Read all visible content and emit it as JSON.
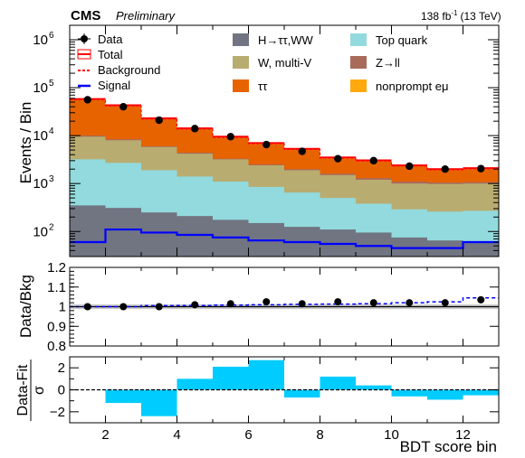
{
  "header": {
    "experiment": "CMS",
    "status": "Preliminary",
    "lumi": "138 fb",
    "lumi_sup": "-1",
    "energy": "(13 TeV)"
  },
  "legend": {
    "data": "Data",
    "total": "Total",
    "background": "Background",
    "signal": "Signal",
    "htautau": "H→ττ,WW",
    "wmultiv": "W, multi-V",
    "tautau": "ττ",
    "top": "Top quark",
    "zll": "Z→ll",
    "nonprompt": "nonprompt eμ"
  },
  "chart_data": [
    {
      "panel": "main",
      "type": "stacked-histogram",
      "ylabel": "Events / Bin",
      "yscale": "log",
      "ylim": [
        30,
        2000000
      ],
      "xlim": [
        1,
        13
      ],
      "x_bin_edges": [
        1,
        2,
        3,
        4,
        5,
        6,
        7,
        8,
        9,
        10,
        11,
        12,
        13
      ],
      "yticks": [
        {
          "value": 100,
          "label": "10",
          "exp": "2"
        },
        {
          "value": 1000,
          "label": "10",
          "exp": "3"
        },
        {
          "value": 10000,
          "label": "10",
          "exp": "4"
        },
        {
          "value": 100000,
          "label": "10",
          "exp": "5"
        },
        {
          "value": 1000000,
          "label": "10",
          "exp": "6"
        }
      ],
      "colors": {
        "htautau": "#717581",
        "top": "#92dadd",
        "wmultiv": "#b9ac70",
        "zll": "#a96b59",
        "tautau": "#e76300",
        "nonprompt": "#ffa90e",
        "total": "#ff0000",
        "signal": "#0000ff",
        "data": "#000000"
      },
      "stack_boundaries_note": "cumulative top edge of each stacked component, bottom to top",
      "series": [
        {
          "key": "htautau",
          "values": [
            350,
            310,
            250,
            210,
            175,
            150,
            125,
            110,
            95,
            75,
            65,
            60
          ]
        },
        {
          "key": "top",
          "values": [
            3200,
            2700,
            1900,
            1400,
            1100,
            850,
            650,
            500,
            380,
            290,
            260,
            270
          ]
        },
        {
          "key": "wmultiv",
          "values": [
            9500,
            8000,
            5800,
            4200,
            3200,
            2400,
            1900,
            1500,
            1200,
            1000,
            980,
            1000
          ]
        },
        {
          "key": "zll",
          "values": [
            10000,
            8400,
            6000,
            4400,
            3300,
            2500,
            2000,
            1600,
            1300,
            1100,
            1050,
            1070
          ]
        },
        {
          "key": "tautau",
          "values": [
            55000,
            41000,
            22000,
            13500,
            9000,
            6600,
            5000,
            3300,
            2900,
            2300,
            1900,
            2000
          ]
        },
        {
          "key": "nonprompt",
          "values": [
            58000,
            43000,
            23000,
            14200,
            9500,
            7000,
            5300,
            3500,
            3050,
            2400,
            2000,
            2100
          ]
        }
      ],
      "signal": [
        60,
        110,
        95,
        85,
        75,
        65,
        60,
        55,
        50,
        45,
        45,
        60
      ],
      "data_points": [
        {
          "x": 1.5,
          "y": 56000
        },
        {
          "x": 2.5,
          "y": 40000
        },
        {
          "x": 3.5,
          "y": 21000
        },
        {
          "x": 4.5,
          "y": 14000
        },
        {
          "x": 5.5,
          "y": 9500
        },
        {
          "x": 6.5,
          "y": 6500
        },
        {
          "x": 7.5,
          "y": 4700
        },
        {
          "x": 8.5,
          "y": 3300
        },
        {
          "x": 9.5,
          "y": 3000
        },
        {
          "x": 10.5,
          "y": 2300
        },
        {
          "x": 11.5,
          "y": 2000
        },
        {
          "x": 12.5,
          "y": 2050
        }
      ]
    },
    {
      "panel": "ratio",
      "type": "scatter",
      "ylabel": "Data/Bkg",
      "ylim": [
        0.8,
        1.2
      ],
      "yticks": [
        0.8,
        0.9,
        1,
        1.1,
        1.2
      ],
      "ytick_labels": [
        "0.8",
        "0.9",
        "1",
        "1.1",
        "1.2"
      ],
      "x": [
        1.5,
        2.5,
        3.5,
        4.5,
        5.5,
        6.5,
        7.5,
        8.5,
        9.5,
        10.5,
        11.5,
        12.5
      ],
      "values": [
        1.0,
        1.0,
        1.0,
        1.01,
        1.015,
        1.025,
        1.015,
        1.025,
        1.02,
        1.02,
        1.02,
        1.035
      ],
      "signal_plus_bkg": [
        1.0,
        1.0,
        1.005,
        1.006,
        1.008,
        1.01,
        1.012,
        1.013,
        1.015,
        1.02,
        1.025,
        1.045
      ]
    },
    {
      "panel": "pull",
      "type": "bar",
      "ylabel_top": "Data-Fit",
      "ylabel_bottom": "σ",
      "xlabel": "BDT score bin",
      "ylim": [
        -3,
        3
      ],
      "yticks": [
        -2,
        0,
        2
      ],
      "ytick_labels": [
        "−2",
        "0",
        "2"
      ],
      "minor_yticks": [
        -1,
        1
      ],
      "xticks": [
        2,
        4,
        6,
        8,
        10,
        12
      ],
      "xtick_labels": [
        "2",
        "4",
        "6",
        "8",
        "10",
        "12"
      ],
      "x_bin_edges": [
        1,
        2,
        3,
        4,
        5,
        6,
        7,
        8,
        9,
        10,
        11,
        12,
        13
      ],
      "values": [
        0,
        -1.2,
        -2.4,
        1.0,
        2.1,
        2.7,
        -0.7,
        1.2,
        0.4,
        -0.6,
        -0.9,
        -0.5
      ],
      "color": "#00ccff"
    }
  ]
}
